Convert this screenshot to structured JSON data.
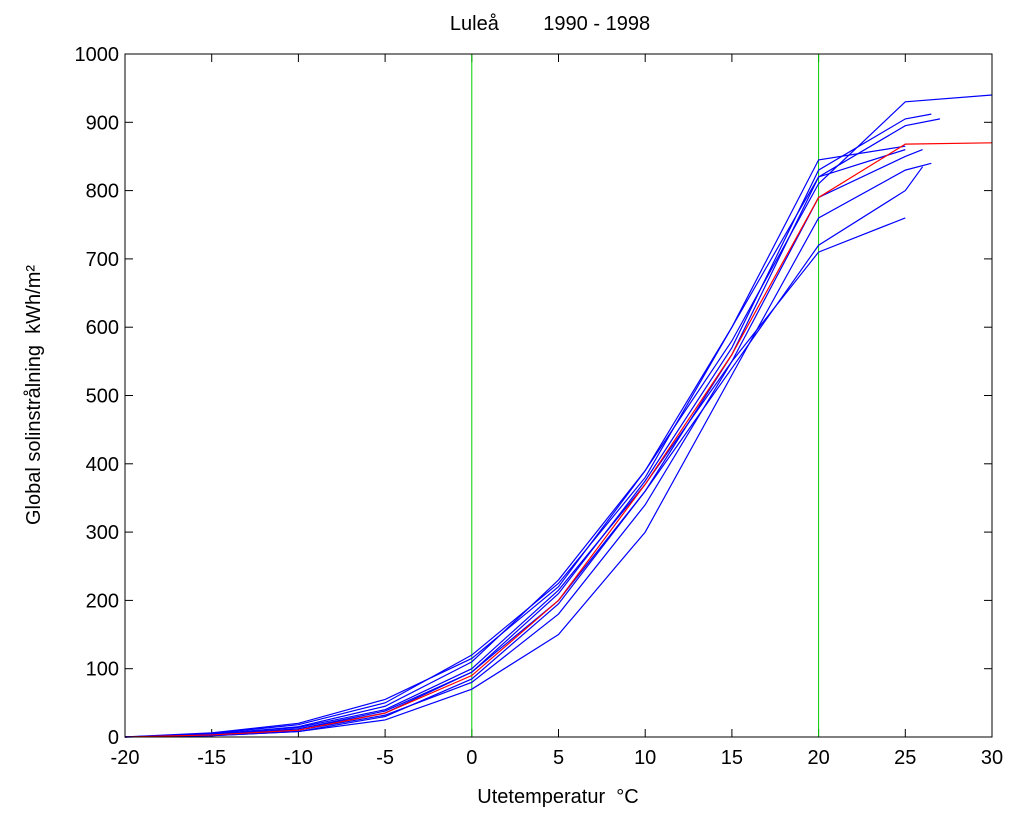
{
  "chart_data": {
    "type": "line",
    "title": "Luleå        1990 - 1998",
    "x_label": "Utetemperatur  °C",
    "y_label": "Global solinstrålning  kWh/m²",
    "xlim": [
      -20,
      30
    ],
    "xticks": [
      -20,
      -15,
      -10,
      -5,
      0,
      5,
      10,
      15,
      20,
      25,
      30
    ],
    "ylim": [
      0,
      1000
    ],
    "yticks": [
      0,
      100,
      200,
      300,
      400,
      500,
      600,
      700,
      800,
      900,
      1000
    ],
    "vlines": [
      0,
      20
    ],
    "vline_color": "#00cc00",
    "series": [
      {
        "color": "#0000ff",
        "x": [
          -20,
          -15,
          -10,
          -5,
          0,
          5,
          10,
          15,
          20,
          25,
          30
        ],
        "values": [
          0,
          4,
          15,
          45,
          110,
          230,
          390,
          580,
          810,
          930,
          940
        ]
      },
      {
        "color": "#0000ff",
        "x": [
          -20,
          -15,
          -10,
          -5,
          0,
          5,
          10,
          15,
          20,
          25,
          26.5
        ],
        "values": [
          0,
          3,
          12,
          38,
          95,
          210,
          375,
          570,
          830,
          905,
          912
        ]
      },
      {
        "color": "#0000ff",
        "x": [
          -20,
          -15,
          -10,
          -5,
          0,
          5,
          10,
          15,
          20,
          25,
          27
        ],
        "values": [
          0,
          2,
          8,
          30,
          85,
          195,
          360,
          560,
          820,
          895,
          905
        ]
      },
      {
        "color": "#0000ff",
        "x": [
          -20,
          -15,
          -10,
          -5,
          0,
          5,
          10,
          15,
          20,
          25
        ],
        "values": [
          0,
          5,
          18,
          50,
          120,
          225,
          380,
          600,
          845,
          865
        ]
      },
      {
        "color": "#0000ff",
        "x": [
          -20,
          -15,
          -10,
          -5,
          0,
          5,
          10,
          15,
          20,
          25,
          26
        ],
        "values": [
          0,
          3,
          10,
          32,
          80,
          180,
          340,
          550,
          790,
          850,
          860
        ]
      },
      {
        "color": "#0000ff",
        "x": [
          -20,
          -15,
          -10,
          -5,
          0,
          5,
          10,
          15,
          20,
          25,
          26.5
        ],
        "values": [
          0,
          2,
          8,
          25,
          70,
          150,
          300,
          530,
          760,
          830,
          840
        ]
      },
      {
        "color": "#0000ff",
        "x": [
          -20,
          -15,
          -10,
          -5,
          0,
          5,
          10,
          15,
          20,
          25,
          26
        ],
        "values": [
          0,
          3,
          12,
          35,
          95,
          200,
          360,
          540,
          720,
          800,
          835
        ]
      },
      {
        "color": "#0000ff",
        "x": [
          -20,
          -15,
          -10,
          -5,
          0,
          5,
          10,
          15,
          20,
          25
        ],
        "values": [
          0,
          4,
          14,
          40,
          100,
          215,
          370,
          550,
          710,
          760
        ]
      },
      {
        "color": "#0000ff",
        "x": [
          -20,
          -15,
          -10,
          -5,
          0,
          5,
          10,
          15,
          20,
          25
        ],
        "values": [
          0,
          6,
          20,
          55,
          115,
          220,
          390,
          600,
          820,
          860
        ]
      },
      {
        "color": "#ff0000",
        "x": [
          -20,
          -15,
          -10,
          -5,
          0,
          5,
          10,
          15,
          20,
          25,
          30
        ],
        "values": [
          0,
          3,
          10,
          35,
          90,
          200,
          370,
          560,
          790,
          868,
          870
        ]
      }
    ]
  }
}
